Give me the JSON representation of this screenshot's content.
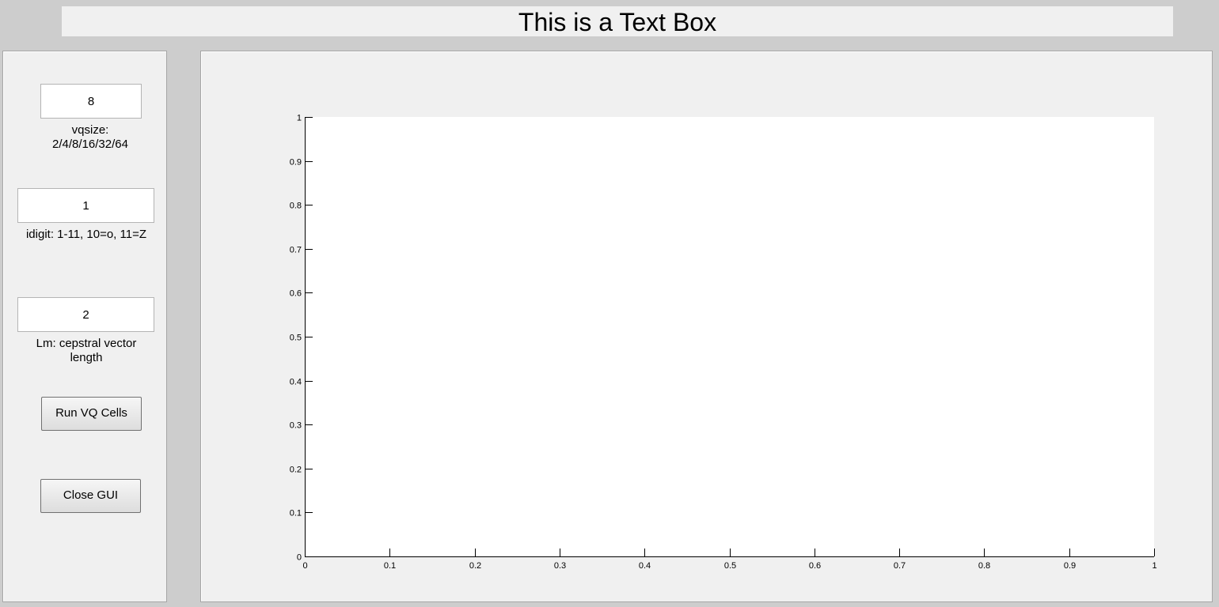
{
  "title": "This is a Text Box",
  "controls": {
    "vqsize": {
      "value": "8",
      "label": "vqsize: 2/4/8/16/32/64"
    },
    "idigit": {
      "value": "1",
      "label": "idigit: 1-11, 10=o, 11=Z"
    },
    "lm": {
      "value": "2",
      "label": "Lm: cepstral vector length"
    }
  },
  "buttons": {
    "run": "Run VQ Cells",
    "close": "Close GUI"
  },
  "chart_data": {
    "type": "line",
    "series": [],
    "xlim": [
      0,
      1
    ],
    "ylim": [
      0,
      1
    ],
    "xticks": [
      "0",
      "0.1",
      "0.2",
      "0.3",
      "0.4",
      "0.5",
      "0.6",
      "0.7",
      "0.8",
      "0.9",
      "1"
    ],
    "yticks": [
      "0",
      "0.1",
      "0.2",
      "0.3",
      "0.4",
      "0.5",
      "0.6",
      "0.7",
      "0.8",
      "0.9",
      "1"
    ],
    "grid": false,
    "title": "",
    "xlabel": "",
    "ylabel": ""
  }
}
